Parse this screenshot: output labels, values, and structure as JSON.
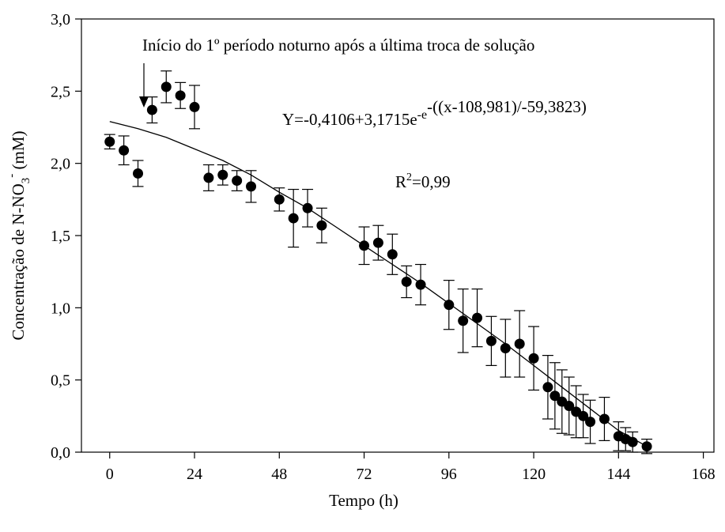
{
  "chart_data": {
    "type": "scatter",
    "xlabel": "Tempo (h)",
    "ylabel": {
      "text": "Concentração de N-NO",
      "sub": "3",
      "sup": "-",
      "unit": " (mM)"
    },
    "annotation": "Início do 1º período noturno após a última troca de solução",
    "equation": {
      "base": "Y=-0,4106+3,1715e",
      "sup": "-e",
      "supsup": "-((x-108,981)/-59,3823)"
    },
    "r2": {
      "base": "R",
      "sup": "2",
      "rest": "=0,99"
    },
    "xlim": [
      -8,
      171
    ],
    "ylim": [
      0,
      3
    ],
    "xticks": [
      0,
      24,
      48,
      72,
      96,
      120,
      144,
      168
    ],
    "yticks": [
      {
        "value": 0,
        "label": "0,0"
      },
      {
        "value": 0.5,
        "label": "0,5"
      },
      {
        "value": 1,
        "label": "1,0"
      },
      {
        "value": 1.5,
        "label": "1,5"
      },
      {
        "value": 2,
        "label": "2,0"
      },
      {
        "value": 2.5,
        "label": "2,5"
      },
      {
        "value": 3,
        "label": "3,0"
      }
    ],
    "series": [
      {
        "color": "#000000",
        "x": [
          0,
          4,
          8,
          12,
          16,
          20,
          24,
          28,
          32,
          36,
          40,
          48,
          52,
          56,
          60,
          72,
          76,
          80,
          84,
          88,
          96,
          100,
          104,
          108,
          112,
          116,
          120,
          124,
          126,
          128,
          130,
          132,
          134,
          136,
          140,
          144,
          146,
          148,
          152
        ],
        "values": [
          2.15,
          2.09,
          1.93,
          2.37,
          2.53,
          2.47,
          2.39,
          1.9,
          1.92,
          1.88,
          1.84,
          1.75,
          1.62,
          1.69,
          1.57,
          1.43,
          1.45,
          1.37,
          1.18,
          1.16,
          1.02,
          0.91,
          0.93,
          0.77,
          0.72,
          0.75,
          0.65,
          0.45,
          0.39,
          0.35,
          0.32,
          0.28,
          0.25,
          0.21,
          0.23,
          0.11,
          0.09,
          0.07,
          0.04
        ],
        "errors": [
          0.05,
          0.1,
          0.09,
          0.09,
          0.11,
          0.09,
          0.15,
          0.09,
          0.07,
          0.07,
          0.11,
          0.08,
          0.2,
          0.13,
          0.12,
          0.13,
          0.12,
          0.14,
          0.11,
          0.14,
          0.17,
          0.22,
          0.2,
          0.17,
          0.2,
          0.23,
          0.22,
          0.22,
          0.23,
          0.22,
          0.2,
          0.18,
          0.15,
          0.15,
          0.15,
          0.1,
          0.08,
          0.07,
          0.05
        ]
      }
    ],
    "fit": {
      "color": "#000000",
      "x": [
        0,
        8,
        16,
        24,
        32,
        40,
        48,
        56,
        64,
        72,
        80,
        88,
        96,
        104,
        112,
        120,
        128,
        136,
        144,
        152
      ],
      "values": [
        2.29,
        2.24,
        2.18,
        2.1,
        2.02,
        1.92,
        1.8,
        1.69,
        1.56,
        1.43,
        1.3,
        1.17,
        1.03,
        0.89,
        0.75,
        0.6,
        0.45,
        0.3,
        0.15,
        0.04
      ]
    }
  }
}
